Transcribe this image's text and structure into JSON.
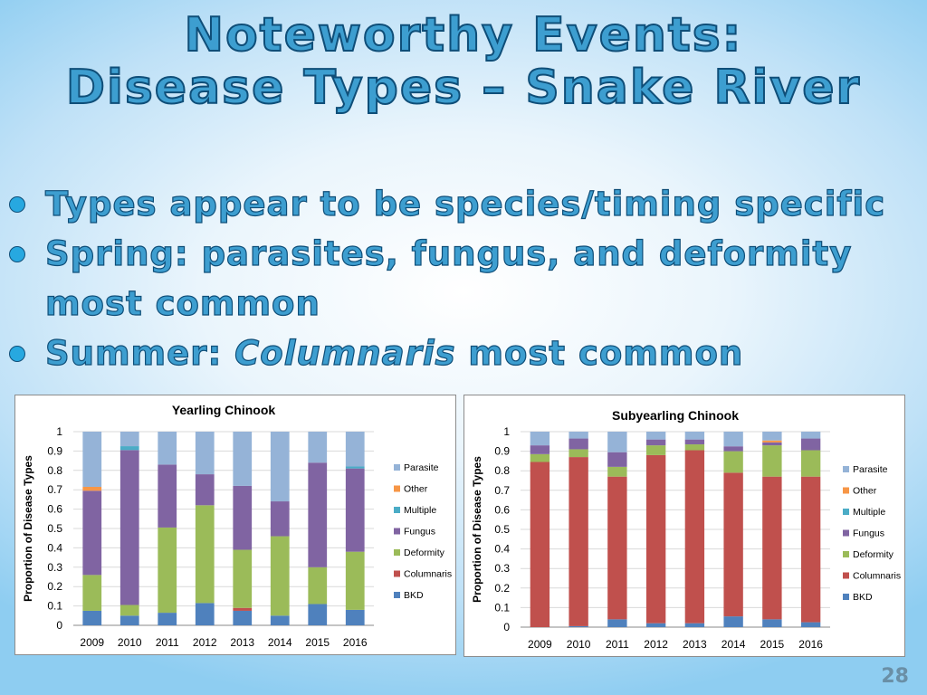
{
  "slide": {
    "title_line1": "Noteworthy Events:",
    "title_line2": "Disease Types – Snake River",
    "bullet1": "Types appear to be species/timing specific",
    "bullet2_line1": "Spring: parasites, fungus, and deformity",
    "bullet2_line2": "most common",
    "bullet3_pre": "Summer: ",
    "bullet3_em": "Columnaris",
    "bullet3_post": " most common",
    "page_number": "28"
  },
  "colors": {
    "title_fill": "#3d9ed0",
    "title_outline": "#0f4e78",
    "bullet_dot": "#27a8e0",
    "series": {
      "Parasite": "#95b3d7",
      "Other": "#f79646",
      "Multiple": "#4bacc6",
      "Fungus": "#8064a2",
      "Deformity": "#9bbb59",
      "Columnaris": "#c0504d",
      "BKD": "#4f81bd"
    }
  },
  "chart_data": [
    {
      "type": "bar",
      "stacked": true,
      "title": "Yearling Chinook",
      "xlabel": "",
      "ylabel": "Proportion of Disease Types",
      "ylim": [
        0,
        1
      ],
      "yticks": [
        "0",
        "0.1",
        "0.2",
        "0.3",
        "0.4",
        "0.5",
        "0.6",
        "0.7",
        "0.8",
        "0.9",
        "1"
      ],
      "legend_position": "right",
      "legend_order": [
        "Parasite",
        "Other",
        "Multiple",
        "Fungus",
        "Deformity",
        "Columnaris",
        "BKD"
      ],
      "categories": [
        "2009",
        "2010",
        "2011",
        "2012",
        "2013",
        "2014",
        "2015",
        "2016"
      ],
      "series": [
        {
          "name": "BKD",
          "values": [
            0.075,
            0.05,
            0.065,
            0.115,
            0.075,
            0.05,
            0.11,
            0.08
          ]
        },
        {
          "name": "Columnaris",
          "values": [
            0,
            0,
            0,
            0,
            0.015,
            0,
            0,
            0
          ]
        },
        {
          "name": "Deformity",
          "values": [
            0.185,
            0.055,
            0.44,
            0.505,
            0.3,
            0.41,
            0.19,
            0.3
          ]
        },
        {
          "name": "Fungus",
          "values": [
            0.435,
            0.8,
            0.325,
            0.16,
            0.33,
            0.18,
            0.54,
            0.43
          ]
        },
        {
          "name": "Multiple",
          "values": [
            0,
            0.02,
            0,
            0,
            0,
            0,
            0,
            0.01
          ]
        },
        {
          "name": "Other",
          "values": [
            0.02,
            0,
            0,
            0,
            0,
            0,
            0,
            0
          ]
        },
        {
          "name": "Parasite",
          "values": [
            0.285,
            0.075,
            0.17,
            0.22,
            0.28,
            0.36,
            0.16,
            0.18
          ]
        }
      ]
    },
    {
      "type": "bar",
      "stacked": true,
      "title": "Subyearling Chinook",
      "xlabel": "",
      "ylabel": "Proportion of Disease Types",
      "ylim": [
        0,
        1
      ],
      "yticks": [
        "0",
        "0.1",
        "0.2",
        "0.3",
        "0.4",
        "0.5",
        "0.6",
        "0.7",
        "0.8",
        "0.9",
        "1"
      ],
      "legend_position": "right",
      "legend_order": [
        "Parasite",
        "Other",
        "Multiple",
        "Fungus",
        "Deformity",
        "Columnaris",
        "BKD"
      ],
      "categories": [
        "2009",
        "2010",
        "2011",
        "2012",
        "2013",
        "2014",
        "2015",
        "2016"
      ],
      "series": [
        {
          "name": "BKD",
          "values": [
            0,
            0.005,
            0.04,
            0.02,
            0.02,
            0.055,
            0.04,
            0.025
          ]
        },
        {
          "name": "Columnaris",
          "values": [
            0.845,
            0.865,
            0.73,
            0.86,
            0.885,
            0.735,
            0.73,
            0.745
          ]
        },
        {
          "name": "Deformity",
          "values": [
            0.04,
            0.04,
            0.05,
            0.05,
            0.03,
            0.11,
            0.16,
            0.135
          ]
        },
        {
          "name": "Fungus",
          "values": [
            0.045,
            0.055,
            0.075,
            0.03,
            0.025,
            0.025,
            0.015,
            0.06
          ]
        },
        {
          "name": "Multiple",
          "values": [
            0,
            0,
            0,
            0,
            0,
            0,
            0,
            0
          ]
        },
        {
          "name": "Other",
          "values": [
            0,
            0,
            0,
            0,
            0,
            0,
            0.01,
            0
          ]
        },
        {
          "name": "Parasite",
          "values": [
            0.07,
            0.035,
            0.105,
            0.04,
            0.04,
            0.075,
            0.045,
            0.035
          ]
        }
      ]
    }
  ]
}
